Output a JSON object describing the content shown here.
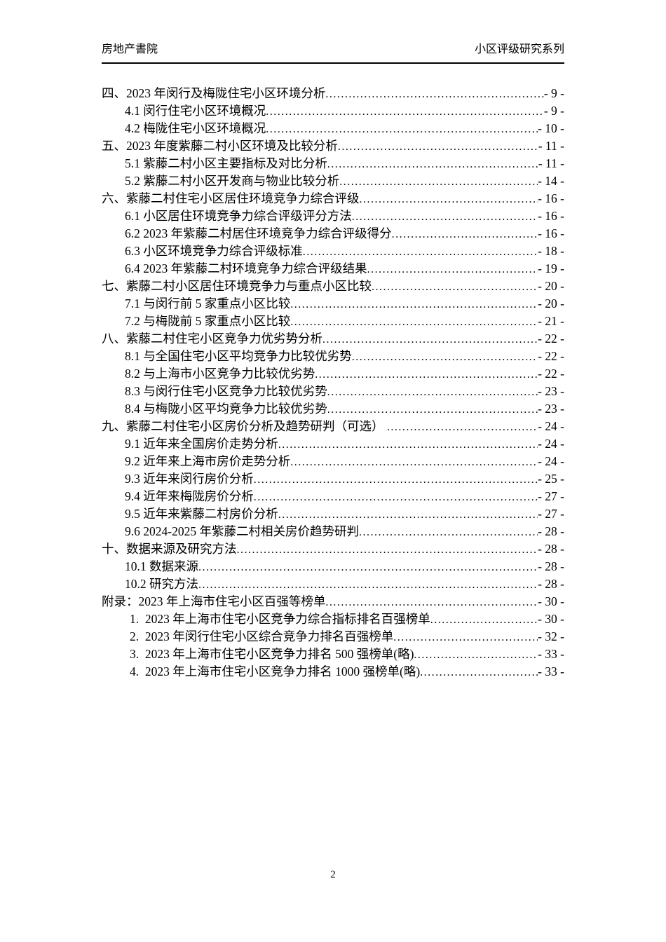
{
  "header": {
    "left": "房地产書院",
    "right": "小区评级研究系列"
  },
  "footer": {
    "page_number": "2"
  },
  "toc": {
    "entries": [
      {
        "level": 1,
        "label": "四、2023 年闵行及梅陇住宅小区环境分析",
        "page": "- 9 -"
      },
      {
        "level": 2,
        "label": "4.1 闵行住宅小区环境概况",
        "page": "- 9 -"
      },
      {
        "level": 2,
        "label": "4.2 梅陇住宅小区环境概况",
        "page": "- 10 -"
      },
      {
        "level": 1,
        "label": "五、2023 年度紫藤二村小区环境及比较分析",
        "page": "- 11 -"
      },
      {
        "level": 2,
        "label": "5.1 紫藤二村小区主要指标及对比分析",
        "page": "- 11 -"
      },
      {
        "level": 2,
        "label": "5.2 紫藤二村小区开发商与物业比较分析",
        "page": "- 14 -"
      },
      {
        "level": 1,
        "label": "六、紫藤二村住宅小区居住环境竞争力综合评级",
        "page": "- 16 -"
      },
      {
        "level": 2,
        "label": "6.1 小区居住环境竞争力综合评级评分方法",
        "page": "- 16 -"
      },
      {
        "level": 2,
        "label": "6.2 2023 年紫藤二村居住环境竞争力综合评级得分",
        "page": "- 16 -"
      },
      {
        "level": 2,
        "label": "6.3 小区环境竞争力综合评级标准",
        "page": "- 18 -"
      },
      {
        "level": 2,
        "label": "6.4 2023 年紫藤二村环境竞争力综合评级结果",
        "page": "- 19 -"
      },
      {
        "level": 1,
        "label": "七、紫藤二村小区居住环境竞争力与重点小区比较",
        "page": "- 20 -"
      },
      {
        "level": 2,
        "label": "7.1 与闵行前 5 家重点小区比较",
        "page": "- 20 -"
      },
      {
        "level": 2,
        "label": "7.2 与梅陇前 5 家重点小区比较",
        "page": "- 21 -"
      },
      {
        "level": 1,
        "label": "八、紫藤二村住宅小区竞争力优劣势分析",
        "page": "- 22 -"
      },
      {
        "level": 2,
        "label": "8.1 与全国住宅小区平均竞争力比较优劣势",
        "page": "- 22 -"
      },
      {
        "level": 2,
        "label": "8.2 与上海市小区竞争力比较优劣势",
        "page": "- 22 -"
      },
      {
        "level": 2,
        "label": "8.3 与闵行住宅小区竞争力比较优劣势",
        "page": "- 23 -"
      },
      {
        "level": 2,
        "label": "8.4 与梅陇小区平均竞争力比较优劣势",
        "page": "- 23 -"
      },
      {
        "level": 1,
        "label": "九、紫藤二村住宅小区房价分析及趋势研判（可选） ",
        "page": "- 24 -"
      },
      {
        "level": 2,
        "label": "9.1 近年来全国房价走势分析",
        "page": "- 24 -"
      },
      {
        "level": 2,
        "label": "9.2 近年来上海市房价走势分析",
        "page": "- 24 -"
      },
      {
        "level": 2,
        "label": "9.3 近年来闵行房价分析",
        "page": "- 25 -"
      },
      {
        "level": 2,
        "label": "9.4 近年来梅陇房价分析",
        "page": "- 27 -"
      },
      {
        "level": 2,
        "label": "9.5 近年来紫藤二村房价分析",
        "page": "- 27 -"
      },
      {
        "level": 2,
        "label": "9.6 2024-2025 年紫藤二村相关房价趋势研判",
        "page": "- 28 -"
      },
      {
        "level": 1,
        "label": "十、数据来源及研究方法",
        "page": "- 28 -"
      },
      {
        "level": 2,
        "label": "10.1 数据来源",
        "page": "- 28 -"
      },
      {
        "level": 2,
        "label": "10.2 研究方法",
        "page": "- 28 -"
      },
      {
        "level": 1,
        "label": "附录：2023 年上海市住宅小区百强等榜单",
        "page": "- 30 -"
      },
      {
        "level": 3,
        "label": "1.  2023 年上海市住宅小区竞争力综合指标排名百强榜单",
        "page": "- 30 -"
      },
      {
        "level": 3,
        "label": "2.  2023 年闵行住宅小区综合竞争力排名百强榜单",
        "page": "- 32 -"
      },
      {
        "level": 3,
        "label": "3.  2023 年上海市住宅小区竞争力排名 500 强榜单(略)",
        "page": "- 33 -"
      },
      {
        "level": 3,
        "label": "4.  2023 年上海市住宅小区竞争力排名 1000 强榜单(略)",
        "page": "- 33 -"
      }
    ]
  }
}
